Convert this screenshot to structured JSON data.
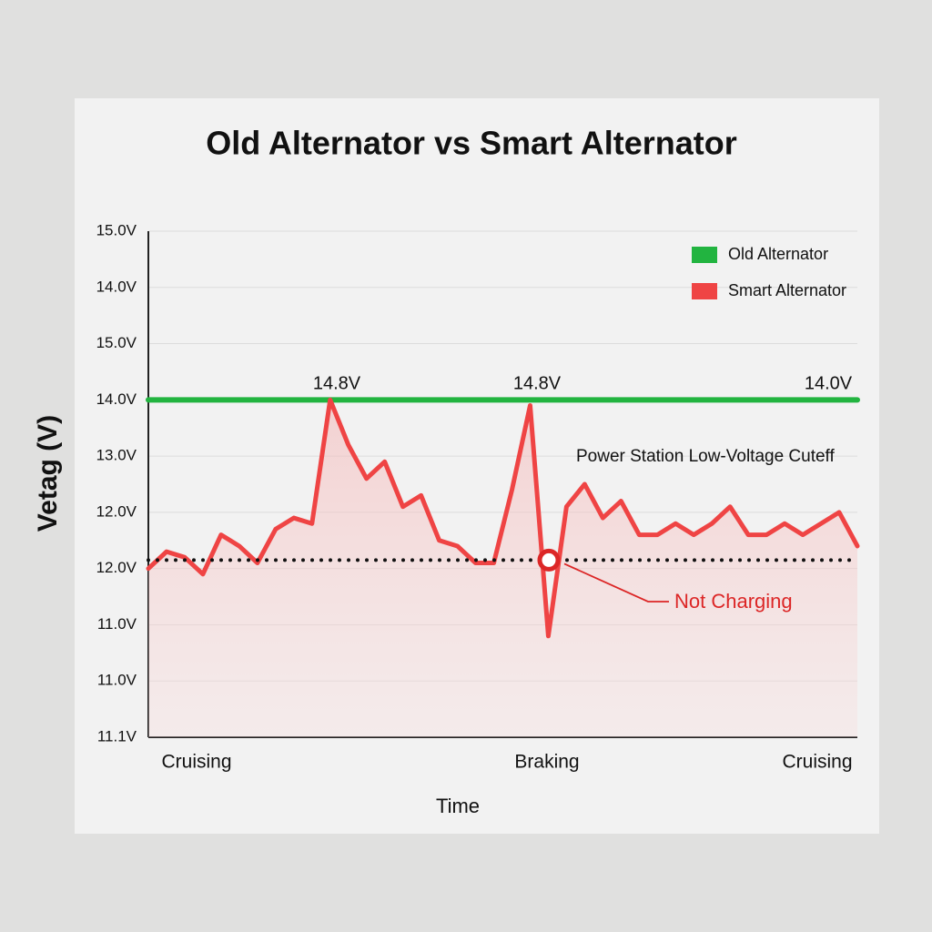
{
  "chart_data": {
    "type": "line",
    "title": "Old Alternator vs Smart Alternator",
    "ylabel": "Vetag (V)",
    "xlabel": "Time",
    "ylim": [
      8,
      17
    ],
    "y_tick_labels": [
      "15.0V",
      "14.0V",
      "15.0V",
      "14.0V",
      "13.0V",
      "12.0V",
      "12.0V",
      "11.0V",
      "11.0V",
      "11.1V"
    ],
    "xtick_labels": [
      "Cruising",
      "Braking",
      "Cruising"
    ],
    "grid": true,
    "legend": "upper right",
    "series": [
      {
        "name": "Old Alternator",
        "color": "#22b440",
        "values": [
          14.0,
          14.0,
          14.0,
          14.0,
          14.0,
          14.0,
          14.0,
          14.0,
          14.0,
          14.0,
          14.0,
          14.0,
          14.0,
          14.0,
          14.0,
          14.0,
          14.0,
          14.0,
          14.0,
          14.0,
          14.0,
          14.0,
          14.0,
          14.0,
          14.0,
          14.0,
          14.0,
          14.0,
          14.0,
          14.0,
          14.0,
          14.0,
          14.0,
          14.0,
          14.0,
          14.0,
          14.0,
          14.0,
          14.0,
          14.0
        ]
      },
      {
        "name": "Smart Alternator",
        "color": "#ef4444",
        "values": [
          11.0,
          11.3,
          11.2,
          10.9,
          11.6,
          11.4,
          11.1,
          11.7,
          11.9,
          11.8,
          14.0,
          13.2,
          12.6,
          12.9,
          12.1,
          12.3,
          11.5,
          11.4,
          11.1,
          11.1,
          12.4,
          13.9,
          9.8,
          12.1,
          12.5,
          11.9,
          12.2,
          11.6,
          11.6,
          11.8,
          11.6,
          11.8,
          12.1,
          11.6,
          11.6,
          11.8,
          11.6,
          11.8,
          12.0,
          11.4
        ]
      }
    ],
    "cutoff": {
      "label": "Power Station Low-Voltage Cuteff",
      "value": 11.15
    },
    "annotations": [
      "14.8V",
      "14.8V",
      "14.0V"
    ],
    "callout": "Not Charging"
  }
}
